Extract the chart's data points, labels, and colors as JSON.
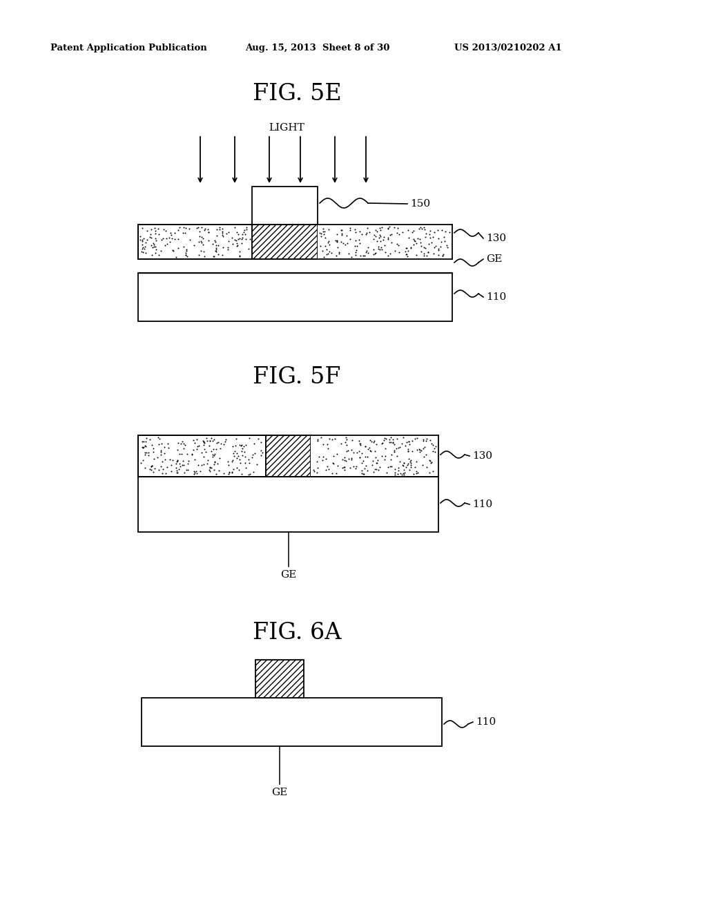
{
  "bg_color": "#ffffff",
  "header_text": "Patent Application Publication",
  "header_date": "Aug. 15, 2013  Sheet 8 of 30",
  "header_patent": "US 2013/0210202 A1",
  "fig5e_title": "FIG. 5E",
  "fig5f_title": "FIG. 5F",
  "fig6a_title": "FIG. 6A",
  "light_label": "LIGHT"
}
